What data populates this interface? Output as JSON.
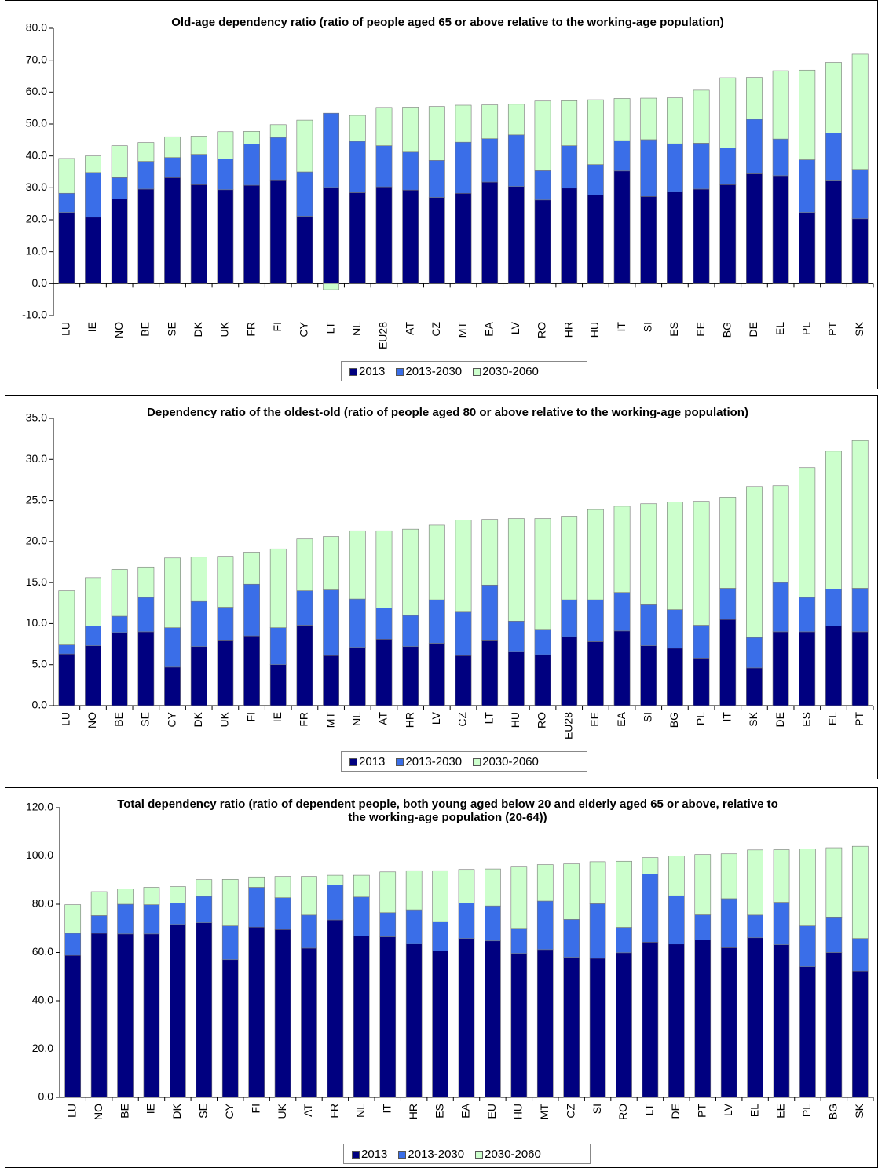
{
  "chart_data": [
    {
      "type": "bar",
      "stacked": true,
      "grid": false,
      "title": "Old-age dependency ratio (ratio of people aged 65 or above relative to the working-age population)",
      "categories": [
        "LU",
        "IE",
        "NO",
        "BE",
        "SE",
        "DK",
        "UK",
        "FR",
        "FI",
        "CY",
        "LT",
        "NL",
        "EU28",
        "AT",
        "CZ",
        "MT",
        "EA",
        "LV",
        "RO",
        "HR",
        "HU",
        "IT",
        "SI",
        "ES",
        "EE",
        "BG",
        "DE",
        "EL",
        "PL",
        "PT",
        "SK"
      ],
      "series": [
        {
          "name": "2013",
          "color": "#000080",
          "values": [
            22.3,
            20.8,
            26.5,
            29.6,
            33.2,
            31.0,
            29.4,
            30.8,
            32.5,
            21.1,
            30.1,
            28.5,
            30.3,
            29.3,
            27.0,
            28.3,
            31.8,
            30.4,
            26.2,
            29.9,
            27.8,
            35.3,
            27.3,
            28.8,
            29.6,
            31.0,
            34.4,
            33.8,
            22.3,
            32.4,
            20.3
          ]
        },
        {
          "name": "2013-2030",
          "color": "#3a6ee8",
          "values": [
            6.0,
            14.0,
            6.7,
            8.7,
            6.3,
            9.5,
            9.7,
            12.9,
            13.3,
            13.9,
            23.3,
            16.1,
            12.9,
            11.9,
            11.6,
            16.0,
            13.6,
            16.2,
            9.2,
            13.3,
            9.5,
            9.5,
            17.8,
            15.0,
            14.4,
            11.5,
            17.1,
            11.5,
            16.5,
            14.8,
            15.5
          ]
        },
        {
          "name": "2030-2060",
          "color": "#ccffcc",
          "values": [
            10.9,
            5.2,
            10.0,
            5.9,
            6.5,
            5.7,
            8.5,
            4.0,
            4.0,
            16.2,
            -1.9,
            8.1,
            12.0,
            14.1,
            16.9,
            11.6,
            10.6,
            9.6,
            21.8,
            14.1,
            20.3,
            13.2,
            13.0,
            14.4,
            16.6,
            22.0,
            13.1,
            21.4,
            28.1,
            22.1,
            36.1
          ]
        }
      ],
      "ylim": [
        -10,
        80
      ],
      "yticks": [
        {
          "value": -10,
          "label": "-10.0"
        },
        {
          "value": 0,
          "label": "0.0"
        },
        {
          "value": 10,
          "label": "10.0"
        },
        {
          "value": 20,
          "label": "20.0"
        },
        {
          "value": 30,
          "label": "30.0"
        },
        {
          "value": 40,
          "label": "40.0"
        },
        {
          "value": 50,
          "label": "50.0"
        },
        {
          "value": 60,
          "label": "60.0"
        },
        {
          "value": 70,
          "label": "70.0"
        },
        {
          "value": 80,
          "label": "80.0"
        }
      ]
    },
    {
      "type": "bar",
      "stacked": true,
      "grid": false,
      "title": "Dependency ratio of the oldest-old (ratio of people aged 80 or above relative to the working-age population)",
      "categories": [
        "LU",
        "NO",
        "BE",
        "SE",
        "CY",
        "DK",
        "UK",
        "FI",
        "IE",
        "FR",
        "MT",
        "NL",
        "AT",
        "HR",
        "LV",
        "CZ",
        "LT",
        "HU",
        "RO",
        "EU28",
        "EE",
        "EA",
        "SI",
        "BG",
        "PL",
        "IT",
        "SK",
        "DE",
        "ES",
        "EL",
        "PT"
      ],
      "series": [
        {
          "name": "2013",
          "color": "#000080",
          "values": [
            6.3,
            7.3,
            8.9,
            9.0,
            4.7,
            7.2,
            8.0,
            8.5,
            5.0,
            9.8,
            6.1,
            7.1,
            8.1,
            7.2,
            7.6,
            6.1,
            8.0,
            6.6,
            6.2,
            8.4,
            7.8,
            9.1,
            7.3,
            7.0,
            5.8,
            10.5,
            4.6,
            9.0,
            9.0,
            9.7,
            9.0
          ]
        },
        {
          "name": "2013-2030",
          "color": "#3a6ee8",
          "values": [
            1.1,
            2.4,
            2.0,
            4.2,
            4.8,
            5.5,
            4.0,
            6.3,
            4.5,
            4.2,
            8.0,
            5.9,
            3.8,
            3.8,
            5.3,
            5.3,
            6.7,
            3.7,
            3.1,
            4.5,
            5.1,
            4.7,
            5.0,
            4.7,
            4.0,
            3.8,
            3.7,
            6.0,
            4.2,
            4.5,
            5.3
          ]
        },
        {
          "name": "2030-2060",
          "color": "#ccffcc",
          "values": [
            6.6,
            5.9,
            5.7,
            3.7,
            8.5,
            5.4,
            6.2,
            3.9,
            9.6,
            6.3,
            6.5,
            8.3,
            9.4,
            10.5,
            9.1,
            11.2,
            8.0,
            12.5,
            13.5,
            10.1,
            11.0,
            10.5,
            12.3,
            13.1,
            15.1,
            11.1,
            18.4,
            11.8,
            15.8,
            16.8,
            18.0
          ]
        }
      ],
      "ylim": [
        0,
        35
      ],
      "yticks": [
        {
          "value": 0,
          "label": "0.0"
        },
        {
          "value": 5,
          "label": "5.0"
        },
        {
          "value": 10,
          "label": "10.0"
        },
        {
          "value": 15,
          "label": "15.0"
        },
        {
          "value": 20,
          "label": "20.0"
        },
        {
          "value": 25,
          "label": "25.0"
        },
        {
          "value": 30,
          "label": "30.0"
        },
        {
          "value": 35,
          "label": "35.0"
        }
      ]
    },
    {
      "type": "bar",
      "stacked": true,
      "grid": false,
      "title": "Total dependency ratio (ratio of dependent people, both young aged below 20 and elderly aged 65 or above, relative to the working-age population (20-64))",
      "categories": [
        "LU",
        "NO",
        "BE",
        "IE",
        "DK",
        "SE",
        "CY",
        "FI",
        "UK",
        "AT",
        "FR",
        "NL",
        "IT",
        "HR",
        "ES",
        "EA",
        "EU",
        "HU",
        "MT",
        "CZ",
        "SI",
        "RO",
        "LT",
        "DE",
        "PT",
        "LV",
        "EL",
        "EE",
        "PL",
        "BG",
        "SK"
      ],
      "series": [
        {
          "name": "2013",
          "color": "#000080",
          "values": [
            58.8,
            68.0,
            67.7,
            67.7,
            71.6,
            72.3,
            57.0,
            70.5,
            69.5,
            61.8,
            73.5,
            66.8,
            66.5,
            63.7,
            60.6,
            65.8,
            64.8,
            59.6,
            61.2,
            58.0,
            57.6,
            59.9,
            64.3,
            63.5,
            65.2,
            62.0,
            66.1,
            63.2,
            54.1,
            60.0,
            52.3
          ]
        },
        {
          "name": "2013-2030",
          "color": "#3a6ee8",
          "values": [
            9.2,
            7.3,
            12.3,
            12.1,
            8.9,
            11.0,
            14.0,
            16.5,
            13.2,
            13.7,
            14.5,
            16.2,
            10.0,
            14.0,
            12.2,
            14.7,
            14.5,
            10.4,
            20.1,
            15.7,
            22.6,
            10.5,
            28.2,
            20.0,
            10.4,
            20.3,
            9.4,
            17.6,
            16.9,
            14.7,
            13.5
          ]
        },
        {
          "name": "2030-2060",
          "color": "#ccffcc",
          "values": [
            11.8,
            9.9,
            6.3,
            7.2,
            6.8,
            6.9,
            19.3,
            4.3,
            8.8,
            16.0,
            4.0,
            9.0,
            16.9,
            16.2,
            21.1,
            13.9,
            15.3,
            25.7,
            15.1,
            23.0,
            17.4,
            27.4,
            6.8,
            16.5,
            25.0,
            18.6,
            27.0,
            21.8,
            31.9,
            28.7,
            38.2
          ]
        }
      ],
      "ylim": [
        0,
        120
      ],
      "yticks": [
        {
          "value": 0,
          "label": "0.0"
        },
        {
          "value": 20,
          "label": "20.0"
        },
        {
          "value": 40,
          "label": "40.0"
        },
        {
          "value": 60,
          "label": "60.0"
        },
        {
          "value": 80,
          "label": "80.0"
        },
        {
          "value": 100,
          "label": "100.0"
        },
        {
          "value": 120,
          "label": "120.0"
        }
      ]
    }
  ]
}
